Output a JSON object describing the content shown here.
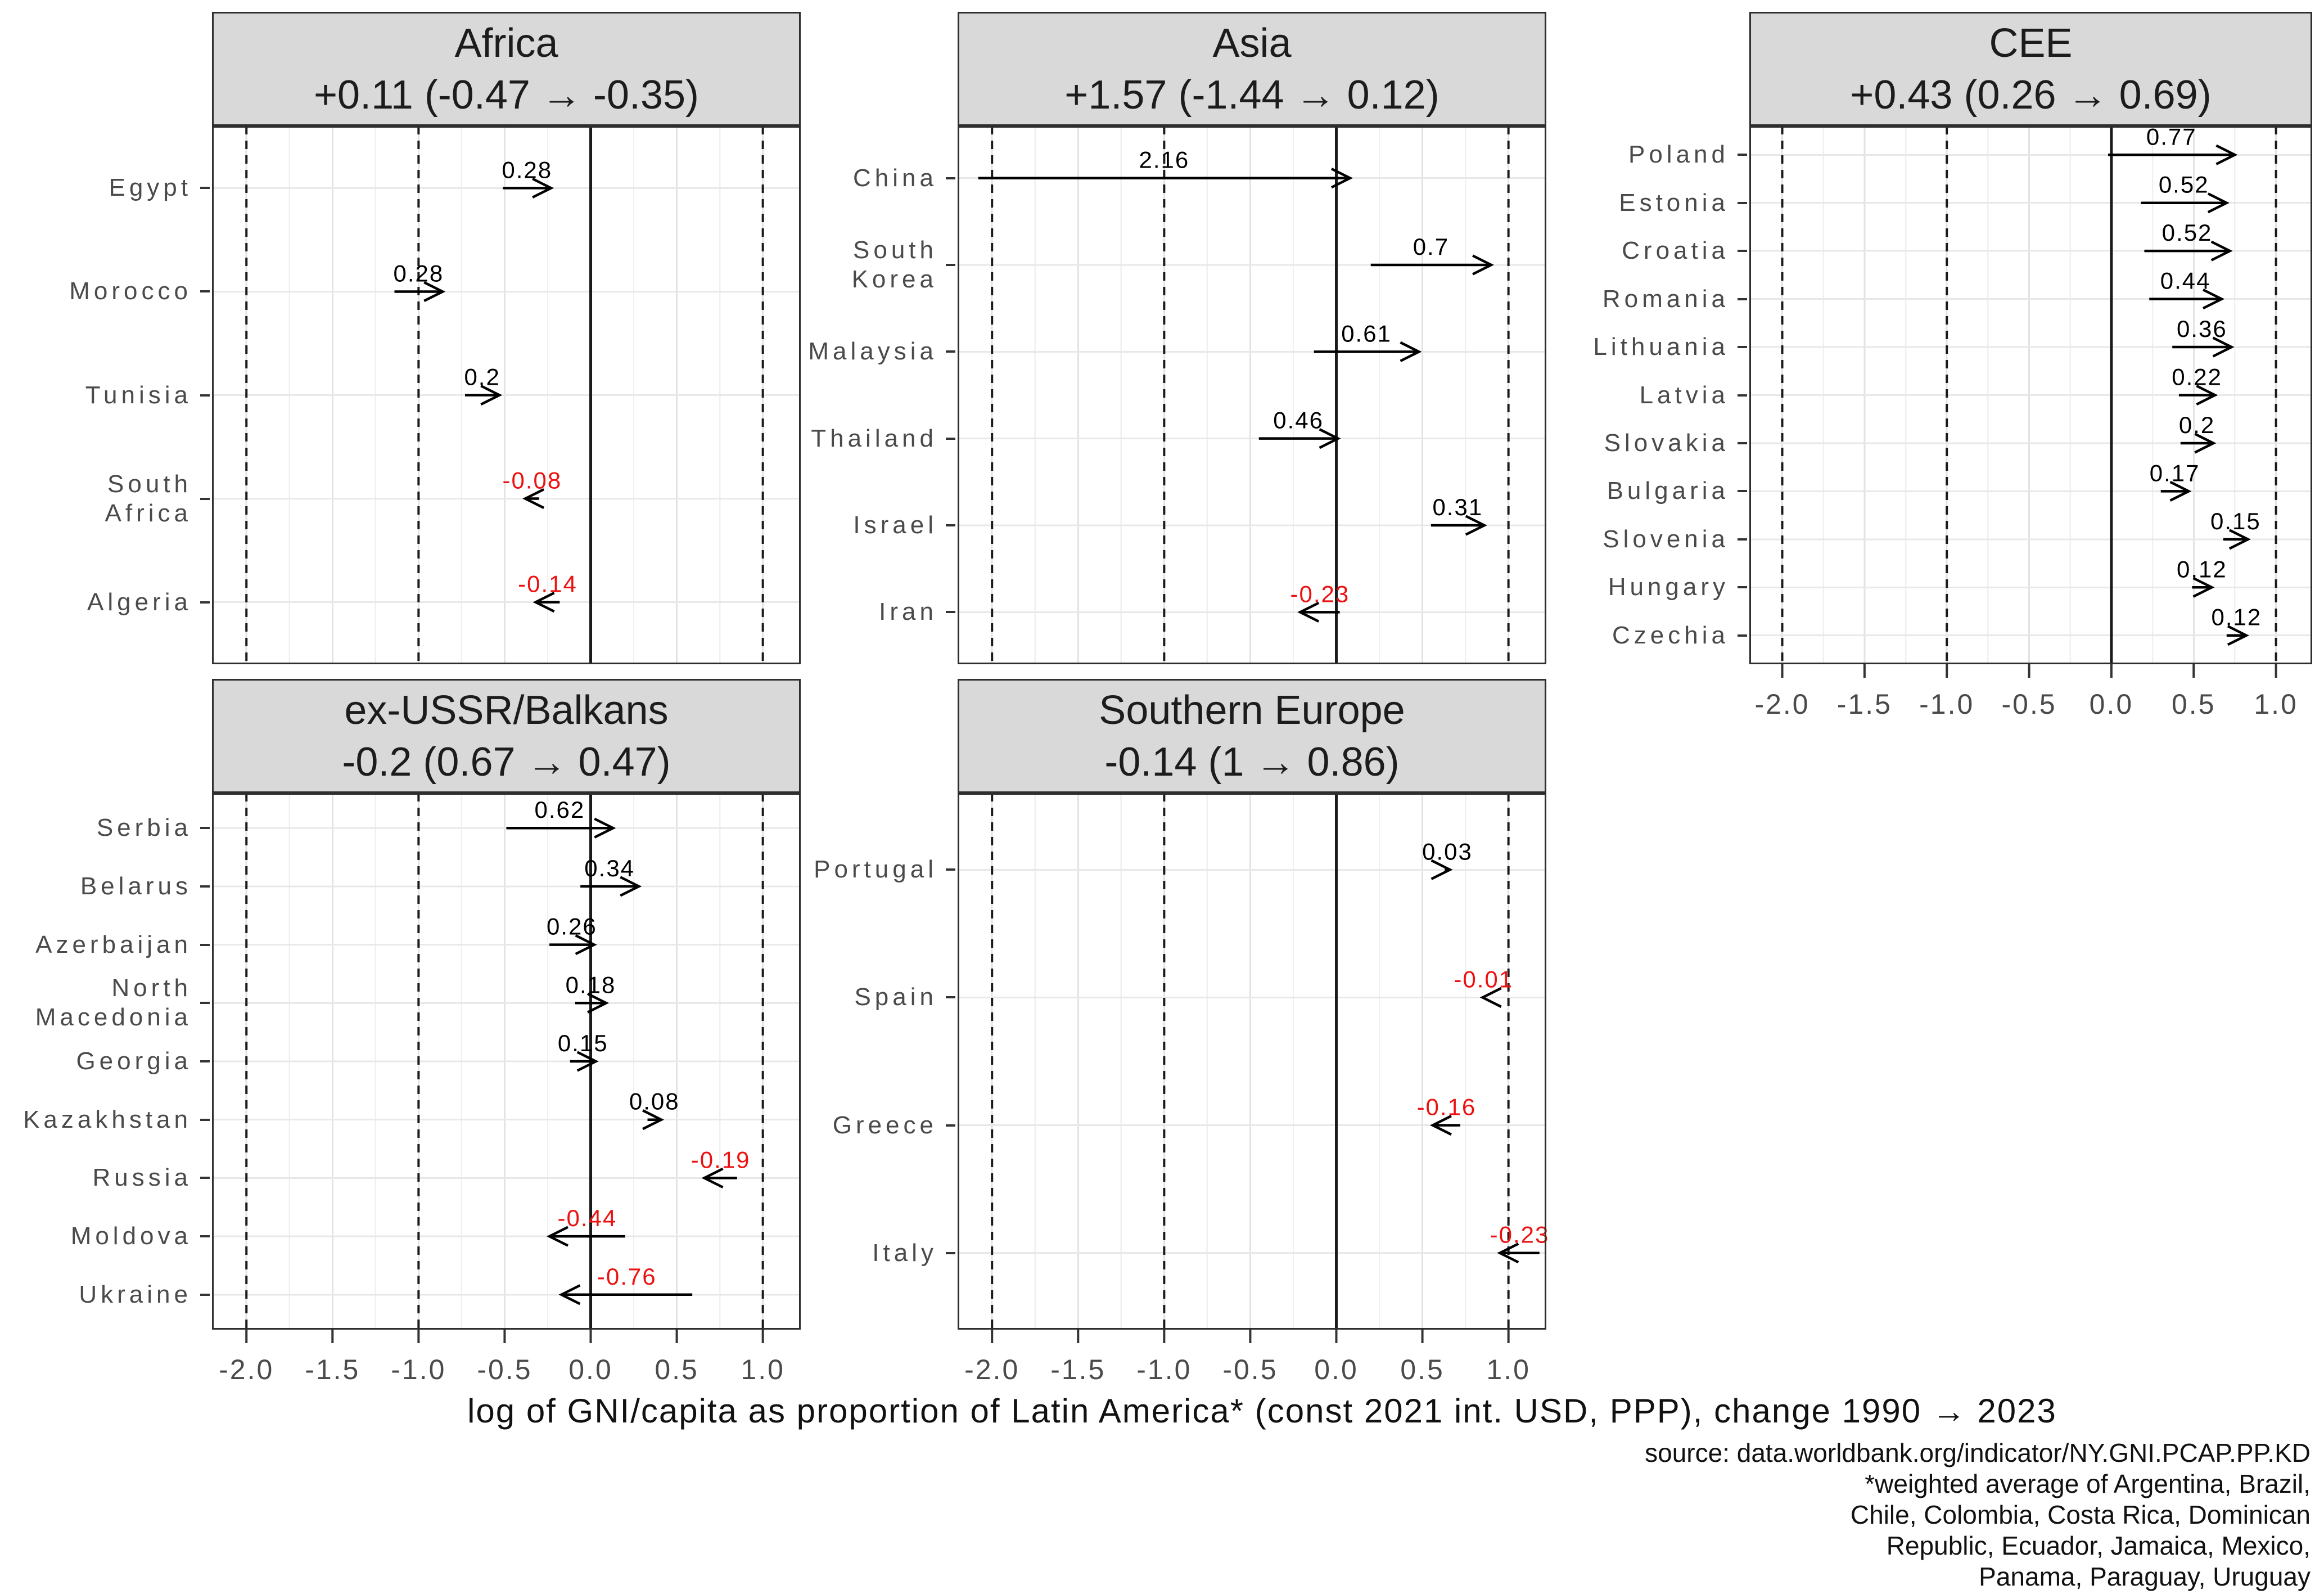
{
  "chart_data": {
    "type": "dumbbell-arrow",
    "description": "Change in log GNI per capita relative to Latin America, 1990 to 2023, by country within regional facets; arrows run from 1990 value to 2023 value, label shows the change (red = decrease).",
    "x_axis": {
      "label": "log of GNI/capita as proportion of Latin America* (const 2021 int. USD, PPP), change 1990 → 2023",
      "ticks": [
        -2.0,
        -1.5,
        -1.0,
        -0.5,
        0.0,
        0.5,
        1.0
      ],
      "tick_labels": [
        "-2.0",
        "-1.5",
        "-1.0",
        "-0.5",
        "0.0",
        "0.5",
        "1.0"
      ],
      "domain": [
        -2.2,
        1.22
      ],
      "dashed_reference_lines": [
        -2,
        -1,
        1
      ],
      "zero_line": 0,
      "grid_step_major": 0.5,
      "grid_step_minor": 0.25
    },
    "caption_lines": [
      "source: data.worldbank.org/indicator/NY.GNI.PCAP.PP.KD",
      "*weighted average of Argentina, Brazil,",
      "Chile, Colombia, Costa Rica, Dominican",
      "Republic, Ecuador, Jamaica, Mexico,",
      "Panama, Paraguay, Uruguay"
    ],
    "colors": {
      "arrow": "#000000",
      "increase_label": "#000000",
      "decrease_label": "#EE1111",
      "strip_bg": "#D9D9D9",
      "axis_text": "#4a4a4a",
      "grid_major": "#e3e3e3",
      "grid_minor": "#f0f0f0",
      "row_grid": "#e8e8e8"
    },
    "facets": [
      {
        "name": "Africa",
        "subtitle": "+0.11 (-0.47 → -0.35)",
        "row": 0,
        "col": 0,
        "items": [
          {
            "country": "Egypt",
            "from": -0.51,
            "to": -0.23,
            "change": "0.28"
          },
          {
            "country": "Morocco",
            "from": -1.14,
            "to": -0.86,
            "change": "0.28"
          },
          {
            "country": "Tunisia",
            "from": -0.73,
            "to": -0.53,
            "change": "0.2"
          },
          {
            "country": "South\nAfrica",
            "from": -0.3,
            "to": -0.38,
            "change": "-0.08"
          },
          {
            "country": "Algeria",
            "from": -0.18,
            "to": -0.32,
            "change": "-0.14"
          }
        ]
      },
      {
        "name": "Asia",
        "subtitle": "+1.57 (-1.44 → 0.12)",
        "row": 0,
        "col": 1,
        "items": [
          {
            "country": "China",
            "from": -2.08,
            "to": 0.08,
            "change": "2.16"
          },
          {
            "country": "South\nKorea",
            "from": 0.2,
            "to": 0.9,
            "change": "0.7"
          },
          {
            "country": "Malaysia",
            "from": -0.13,
            "to": 0.48,
            "change": "0.61"
          },
          {
            "country": "Thailand",
            "from": -0.45,
            "to": 0.01,
            "change": "0.46"
          },
          {
            "country": "Israel",
            "from": 0.55,
            "to": 0.86,
            "change": "0.31"
          },
          {
            "country": "Iran",
            "from": 0.02,
            "to": -0.21,
            "change": "-0.23"
          }
        ]
      },
      {
        "name": "CEE",
        "subtitle": "+0.43 (0.26 → 0.69)",
        "row": 0,
        "col": 2,
        "items": [
          {
            "country": "Poland",
            "from": -0.02,
            "to": 0.75,
            "change": "0.77"
          },
          {
            "country": "Estonia",
            "from": 0.18,
            "to": 0.7,
            "change": "0.52"
          },
          {
            "country": "Croatia",
            "from": 0.2,
            "to": 0.72,
            "change": "0.52"
          },
          {
            "country": "Romania",
            "from": 0.23,
            "to": 0.67,
            "change": "0.44"
          },
          {
            "country": "Lithuania",
            "from": 0.37,
            "to": 0.73,
            "change": "0.36"
          },
          {
            "country": "Latvia",
            "from": 0.41,
            "to": 0.63,
            "change": "0.22"
          },
          {
            "country": "Slovakia",
            "from": 0.42,
            "to": 0.62,
            "change": "0.2"
          },
          {
            "country": "Bulgaria",
            "from": 0.3,
            "to": 0.47,
            "change": "0.17"
          },
          {
            "country": "Slovenia",
            "from": 0.68,
            "to": 0.83,
            "change": "0.15"
          },
          {
            "country": "Hungary",
            "from": 0.49,
            "to": 0.61,
            "change": "0.12"
          },
          {
            "country": "Czechia",
            "from": 0.7,
            "to": 0.82,
            "change": "0.12"
          }
        ]
      },
      {
        "name": "ex-USSR/Balkans",
        "subtitle": "-0.2 (0.67 → 0.47)",
        "row": 1,
        "col": 0,
        "items": [
          {
            "country": "Serbia",
            "from": -0.49,
            "to": 0.13,
            "change": "0.62"
          },
          {
            "country": "Belarus",
            "from": -0.06,
            "to": 0.28,
            "change": "0.34"
          },
          {
            "country": "Azerbaijan",
            "from": -0.24,
            "to": 0.02,
            "change": "0.26"
          },
          {
            "country": "North\nMacedonia",
            "from": -0.09,
            "to": 0.09,
            "change": "0.18"
          },
          {
            "country": "Georgia",
            "from": -0.12,
            "to": 0.03,
            "change": "0.15"
          },
          {
            "country": "Kazakhstan",
            "from": 0.33,
            "to": 0.41,
            "change": "0.08"
          },
          {
            "country": "Russia",
            "from": 0.85,
            "to": 0.66,
            "change": "-0.19"
          },
          {
            "country": "Moldova",
            "from": 0.2,
            "to": -0.24,
            "change": "-0.44"
          },
          {
            "country": "Ukraine",
            "from": 0.59,
            "to": -0.17,
            "change": "-0.76"
          }
        ]
      },
      {
        "name": "Southern Europe",
        "subtitle": "-0.14 (1 → 0.86)",
        "row": 1,
        "col": 1,
        "items": [
          {
            "country": "Portugal",
            "from": 0.63,
            "to": 0.66,
            "change": "0.03"
          },
          {
            "country": "Spain",
            "from": 0.86,
            "to": 0.85,
            "change": "-0.01"
          },
          {
            "country": "Greece",
            "from": 0.72,
            "to": 0.56,
            "change": "-0.16"
          },
          {
            "country": "Italy",
            "from": 1.18,
            "to": 0.95,
            "change": "-0.23"
          }
        ]
      }
    ]
  }
}
